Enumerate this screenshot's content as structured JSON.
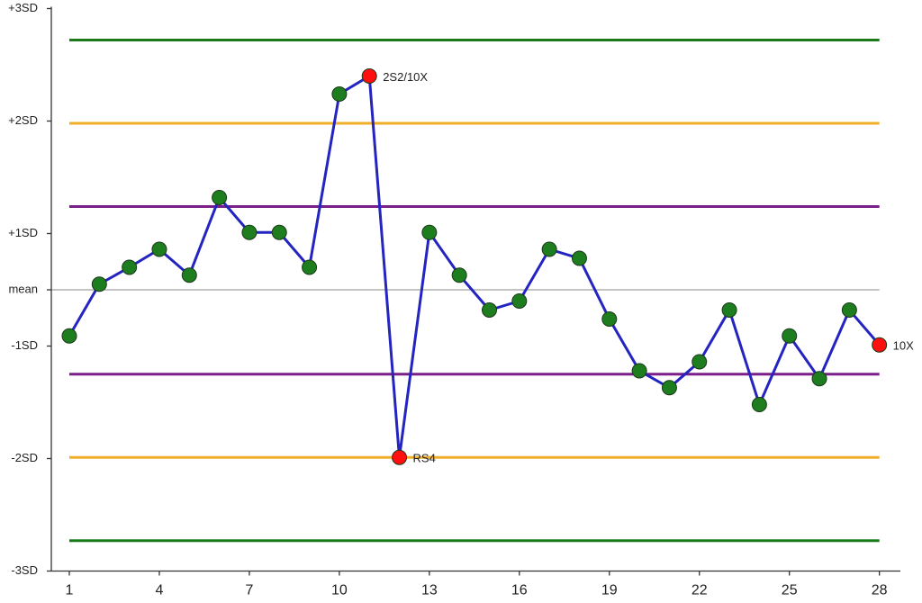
{
  "chart_data": {
    "type": "line",
    "x": [
      1,
      2,
      3,
      4,
      5,
      6,
      7,
      8,
      9,
      10,
      11,
      12,
      13,
      14,
      15,
      16,
      17,
      18,
      19,
      20,
      21,
      22,
      23,
      24,
      25,
      26,
      27,
      28
    ],
    "values": [
      -0.41,
      0.05,
      0.2,
      0.36,
      0.13,
      0.82,
      0.51,
      0.51,
      0.2,
      1.74,
      1.9,
      -1.49,
      0.51,
      0.13,
      -0.18,
      -0.1,
      0.36,
      0.28,
      -0.26,
      -0.72,
      -0.87,
      -0.64,
      -0.18,
      -1.02,
      -0.41,
      -0.79,
      -0.18,
      -0.49
    ],
    "point_labels": [
      null,
      null,
      null,
      null,
      null,
      null,
      null,
      null,
      null,
      null,
      "2S2/10X",
      "RS4",
      null,
      null,
      null,
      null,
      null,
      null,
      null,
      null,
      null,
      null,
      null,
      null,
      null,
      null,
      null,
      "10X"
    ],
    "line_color": "#2424c0",
    "marker_color": "#1e7d1e",
    "flag_color": "#ff1010",
    "xlim": [
      0.4,
      28.7
    ],
    "xticks": [
      1,
      4,
      7,
      10,
      13,
      16,
      19,
      22,
      25,
      28
    ],
    "ylim": [
      -2.5,
      2.5
    ],
    "yticks": [
      {
        "value": 2.5,
        "label": "+3SD"
      },
      {
        "value": 1.5,
        "label": "+2SD"
      },
      {
        "value": 0.5,
        "label": "+1SD"
      },
      {
        "value": 0,
        "label": "mean"
      },
      {
        "value": -0.5,
        "label": "-1SD"
      },
      {
        "value": -1.5,
        "label": "-2SD"
      },
      {
        "value": -2.5,
        "label": "-3SD"
      }
    ],
    "reference_lines": [
      {
        "value": 2.22,
        "color": "#1a7a1a"
      },
      {
        "value": 1.48,
        "color": "#f0ad2a"
      },
      {
        "value": 0.74,
        "color": "#7a1f8a"
      },
      {
        "value": -0.75,
        "color": "#7a1f8a"
      },
      {
        "value": -1.49,
        "color": "#f0ad2a"
      },
      {
        "value": -2.23,
        "color": "#1a7a1a"
      }
    ]
  }
}
